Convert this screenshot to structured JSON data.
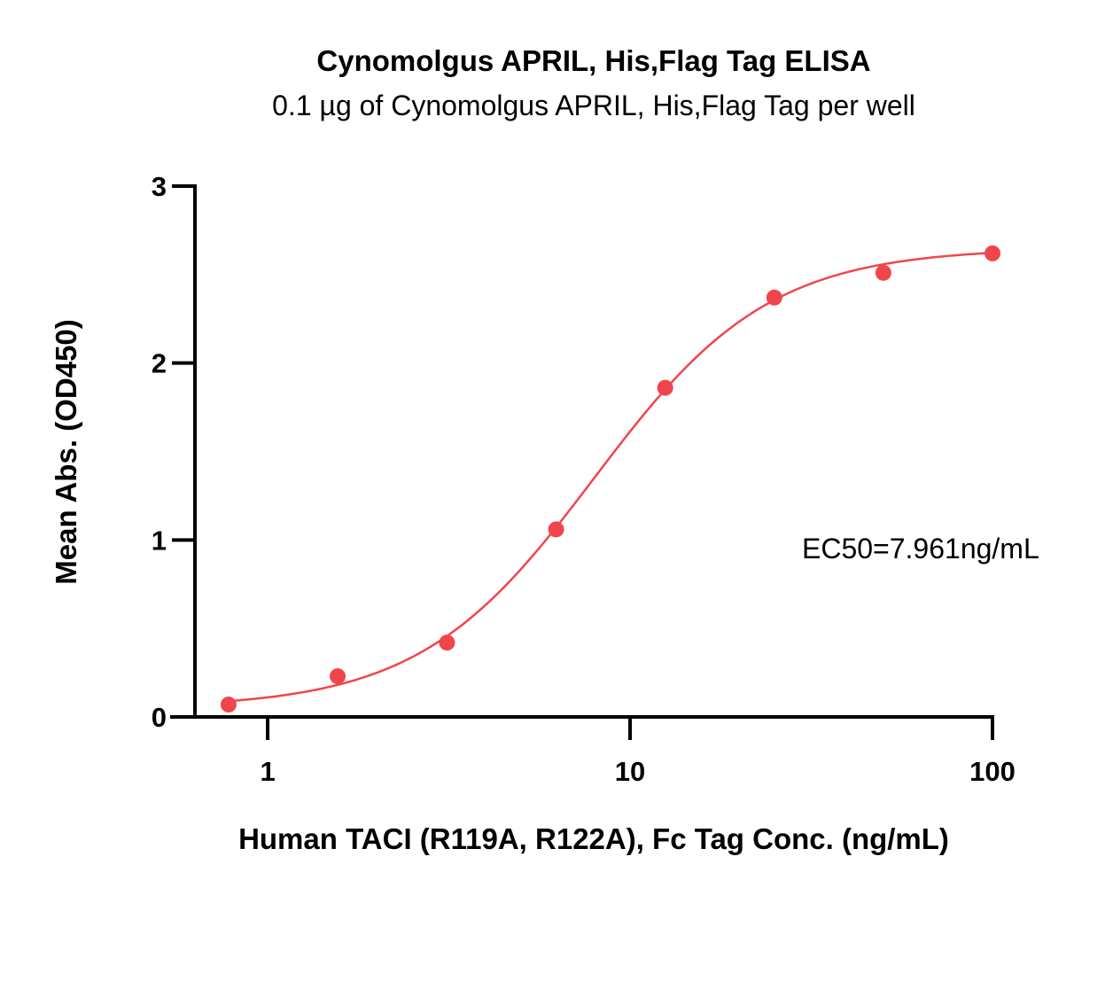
{
  "chart_data": {
    "type": "scatter",
    "title": "Cynomolgus APRIL, His,Flag Tag ELISA",
    "subtitle": "0.1 µg of Cynomolgus APRIL, His,Flag Tag per well",
    "xlabel": "Human TACI (R119A, R122A), Fc Tag Conc. (ng/mL)",
    "ylabel": "Mean Abs. (OD450)",
    "x_scale": "log",
    "xlim": [
      0.63,
      100
    ],
    "ylim": [
      0,
      3
    ],
    "x_ticks": [
      1,
      10,
      100
    ],
    "x_tick_labels": [
      "1",
      "10",
      "100"
    ],
    "y_ticks": [
      0,
      1,
      2,
      3
    ],
    "y_tick_labels": [
      "0",
      "1",
      "2",
      "3"
    ],
    "series": [
      {
        "x": [
          0.78,
          1.56,
          3.125,
          6.25,
          12.5,
          25,
          50,
          100
        ],
        "y": [
          0.07,
          0.23,
          0.42,
          1.06,
          1.86,
          2.37,
          2.51,
          2.62
        ],
        "color": "#f0464b",
        "fit": "4PL sigmoid curve"
      }
    ],
    "annotation": "EC50=7.961ng/mL",
    "grid": false
  }
}
